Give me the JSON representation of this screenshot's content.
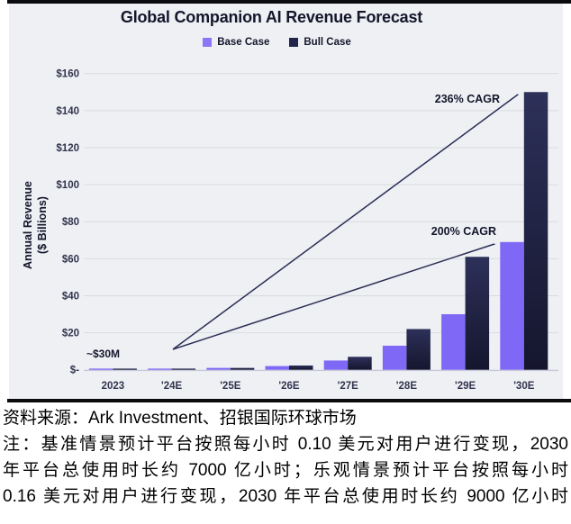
{
  "title": "Global Companion AI Revenue Forecast",
  "legend": [
    {
      "label": "Base Case",
      "color": "#8a76f7"
    },
    {
      "label": "Bull Case",
      "color": "#23254c"
    }
  ],
  "y_axis_title": {
    "line1": "Annual Revenue",
    "line2": "($ Billions)"
  },
  "chart_data": {
    "type": "bar",
    "categories": [
      "2023",
      "'24E",
      "'25E",
      "'26E",
      "'27E",
      "'28E",
      "'29E",
      "'30E"
    ],
    "series": [
      {
        "name": "Base Case",
        "color": "#7e68f5",
        "values": [
          0.03,
          0.1,
          1,
          2,
          5,
          13,
          30,
          69
        ]
      },
      {
        "name": "Bull Case",
        "color_top": "#2d3059",
        "color_bottom": "#15162e",
        "values": [
          0.03,
          0.1,
          1,
          2.3,
          7,
          22,
          61,
          150
        ]
      }
    ],
    "ylabel": "Annual Revenue ($ Billions)",
    "ylim": [
      0,
      160
    ],
    "y_ticks": [
      {
        "value": 0,
        "label": "$-"
      },
      {
        "value": 20,
        "label": "$20"
      },
      {
        "value": 40,
        "label": "$40"
      },
      {
        "value": 60,
        "label": "$60"
      },
      {
        "value": 80,
        "label": "$80"
      },
      {
        "value": 100,
        "label": "$100"
      },
      {
        "value": 120,
        "label": "$120"
      },
      {
        "value": 140,
        "label": "$140"
      },
      {
        "value": 160,
        "label": "$160"
      }
    ],
    "grid": true,
    "legend_position": "top",
    "annotations": {
      "start_label": "~$30M",
      "cagr_bull": "236% CAGR",
      "cagr_base": "200% CAGR"
    }
  },
  "colors": {
    "card_background": "#eef0f4",
    "gridline": "#d9dbdf",
    "baseline": "#c8c8dc",
    "tick_text": "#33354f",
    "annotation_text": "#14162b",
    "arrow": "#2b2e55",
    "rule": "#0b0b0d"
  },
  "notes": {
    "line1": "资料来源：Ark Investment、招银国际环球市场",
    "line2": "注：基准情景预计平台按照每小时 0.10 美元对用户进行变现，2030",
    "line3": "年平台总使用时长约 7000 亿小时；乐观情景预计平台按照每小时",
    "line4": "0.16 美元对用户进行变现，2030 年平台总使用时长约 9000 亿小时"
  }
}
